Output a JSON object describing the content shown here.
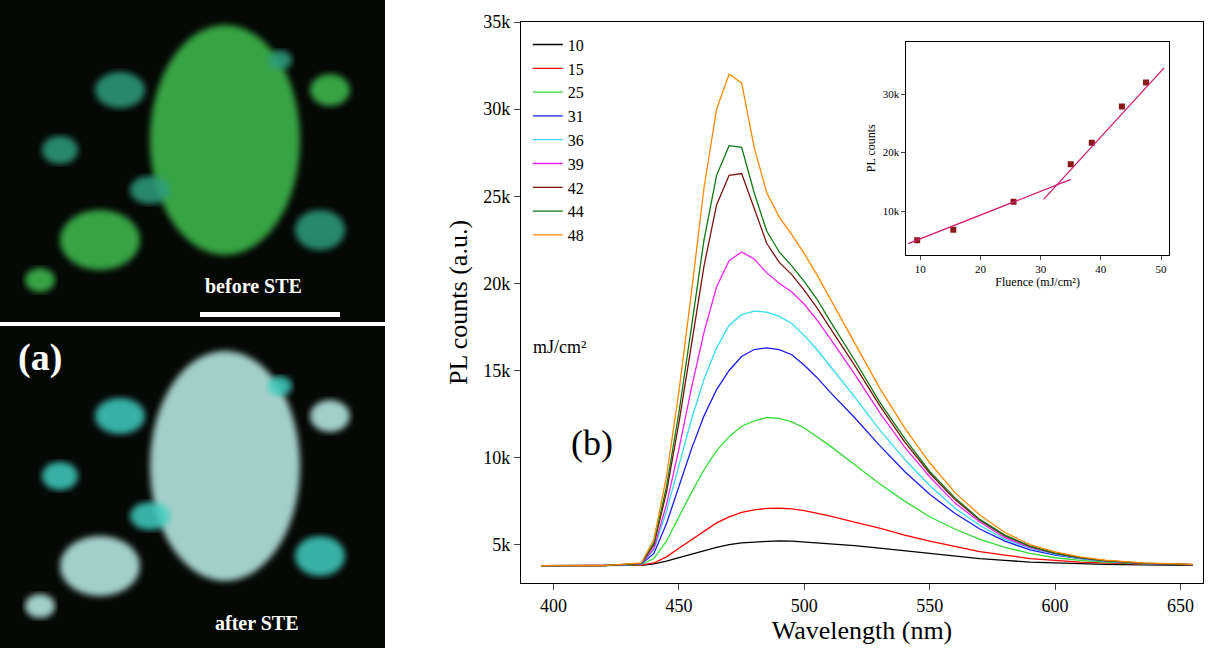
{
  "image_panel": {
    "label": "(a)",
    "top_caption": "before STE",
    "bottom_caption": "after STE"
  },
  "chart_data": [
    {
      "type": "line",
      "x_label": "Wavelength (nm)",
      "y_label": "PL counts (a.u.)",
      "xlim": [
        387,
        659
      ],
      "xticks": [
        400,
        450,
        500,
        550,
        600,
        650
      ],
      "ylim": [
        2800,
        35000
      ],
      "yticks": [
        {
          "value": 5000,
          "label": "5k"
        },
        {
          "value": 10000,
          "label": "10k"
        },
        {
          "value": 15000,
          "label": "15k"
        },
        {
          "value": 20000,
          "label": "20k"
        },
        {
          "value": 25000,
          "label": "25k"
        },
        {
          "value": 30000,
          "label": "30k"
        },
        {
          "value": 35000,
          "label": "35k"
        }
      ],
      "grid": false,
      "legend": "upper left",
      "annotations": [
        "mJ/cm²",
        "(b)"
      ],
      "x": [
        395,
        420,
        435,
        440,
        445,
        450,
        455,
        460,
        465,
        470,
        475,
        480,
        485,
        490,
        495,
        500,
        505,
        510,
        520,
        530,
        540,
        550,
        560,
        570,
        580,
        590,
        600,
        610,
        620,
        635,
        655
      ],
      "series": [
        {
          "name": "10",
          "color": "#000000",
          "values": [
            3800,
            3800,
            3820,
            3900,
            4050,
            4250,
            4450,
            4650,
            4850,
            5000,
            5100,
            5150,
            5200,
            5220,
            5200,
            5150,
            5100,
            5050,
            4950,
            4800,
            4650,
            4500,
            4350,
            4200,
            4100,
            4000,
            3950,
            3900,
            3870,
            3840,
            3820
          ]
        },
        {
          "name": "15",
          "color": "#ff0000",
          "values": [
            3800,
            3800,
            3830,
            3950,
            4300,
            4800,
            5300,
            5800,
            6250,
            6600,
            6850,
            7000,
            7080,
            7100,
            7050,
            6950,
            6800,
            6650,
            6300,
            5950,
            5550,
            5200,
            4900,
            4600,
            4400,
            4200,
            4100,
            4000,
            3950,
            3880,
            3850
          ]
        },
        {
          "name": "25",
          "color": "#33dd33",
          "values": [
            3800,
            3800,
            3850,
            4200,
            5200,
            6600,
            8000,
            9300,
            10400,
            11200,
            11800,
            12100,
            12300,
            12250,
            12050,
            11700,
            11200,
            10700,
            9600,
            8500,
            7500,
            6600,
            5900,
            5300,
            4850,
            4500,
            4250,
            4100,
            4000,
            3900,
            3850
          ]
        },
        {
          "name": "31",
          "color": "#1a1aee",
          "values": [
            3800,
            3800,
            3880,
            4500,
            6200,
            8400,
            10500,
            12400,
            13900,
            15000,
            15800,
            16200,
            16300,
            16200,
            15900,
            15300,
            14600,
            13800,
            12300,
            10700,
            9200,
            7900,
            6800,
            5900,
            5200,
            4700,
            4400,
            4200,
            4050,
            3920,
            3860
          ]
        },
        {
          "name": "36",
          "color": "#33ddee",
          "values": [
            3800,
            3800,
            3900,
            4700,
            6900,
            9500,
            12200,
            14500,
            16300,
            17600,
            18200,
            18400,
            18350,
            18100,
            17700,
            17000,
            16200,
            15300,
            13500,
            11600,
            9900,
            8400,
            7100,
            6100,
            5300,
            4800,
            4450,
            4220,
            4060,
            3930,
            3860
          ]
        },
        {
          "name": "39",
          "color": "#ee22ee",
          "values": [
            3800,
            3800,
            3900,
            4800,
            7300,
            10500,
            14000,
            17200,
            19800,
            21300,
            21800,
            21400,
            20600,
            20000,
            19500,
            18800,
            17900,
            16900,
            14800,
            12600,
            10600,
            8900,
            7400,
            6300,
            5400,
            4850,
            4480,
            4240,
            4070,
            3930,
            3860
          ]
        },
        {
          "name": "42",
          "color": "#7a1010",
          "values": [
            3800,
            3800,
            3920,
            5000,
            8000,
            12000,
            16500,
            21000,
            24500,
            26200,
            26300,
            24300,
            22300,
            21200,
            20500,
            19600,
            18600,
            17500,
            15300,
            13000,
            10900,
            9100,
            7600,
            6400,
            5500,
            4900,
            4500,
            4250,
            4080,
            3930,
            3860
          ]
        },
        {
          "name": "44",
          "color": "#117711",
          "values": [
            3800,
            3800,
            3930,
            5100,
            8300,
            12600,
            17500,
            22500,
            26200,
            27900,
            27800,
            25200,
            23000,
            21800,
            21000,
            20100,
            19100,
            17900,
            15600,
            13200,
            11100,
            9200,
            7700,
            6450,
            5550,
            4920,
            4520,
            4260,
            4090,
            3940,
            3860
          ]
        },
        {
          "name": "48",
          "color": "#ff8800",
          "values": [
            3800,
            3800,
            3950,
            5300,
            8900,
            13800,
            19500,
            25500,
            30000,
            32000,
            31500,
            27800,
            25200,
            23800,
            22800,
            21700,
            20500,
            19200,
            16600,
            14000,
            11700,
            9700,
            8000,
            6700,
            5700,
            5000,
            4580,
            4300,
            4110,
            3950,
            3870
          ]
        }
      ]
    },
    {
      "type": "scatter",
      "x_label": "Fluence (mJ/cm²)",
      "y_label": "PL counts",
      "xlim": [
        7.7,
        51.3
      ],
      "xticks": [
        10,
        20,
        30,
        40,
        50
      ],
      "ylim": [
        2500,
        39000
      ],
      "yticks": [
        {
          "value": 10000,
          "label": "10k"
        },
        {
          "value": 20000,
          "label": "20k"
        },
        {
          "value": 30000,
          "label": "30k"
        }
      ],
      "grid": false,
      "series": [
        {
          "type": "scatter",
          "marker": "square",
          "color": "#8b1a1a",
          "x": [
            9.5,
            15.5,
            25.5,
            35,
            38.5,
            43.5,
            47.5
          ],
          "values": [
            5000,
            6800,
            11600,
            18000,
            21700,
            27900,
            32000
          ]
        },
        {
          "type": "line",
          "color": "#d11a6e",
          "x": [
            8,
            35
          ],
          "values": [
            4400,
            15400
          ]
        },
        {
          "type": "line",
          "color": "#d11a6e",
          "x": [
            30.5,
            50.5
          ],
          "values": [
            12000,
            34500
          ]
        }
      ]
    }
  ]
}
